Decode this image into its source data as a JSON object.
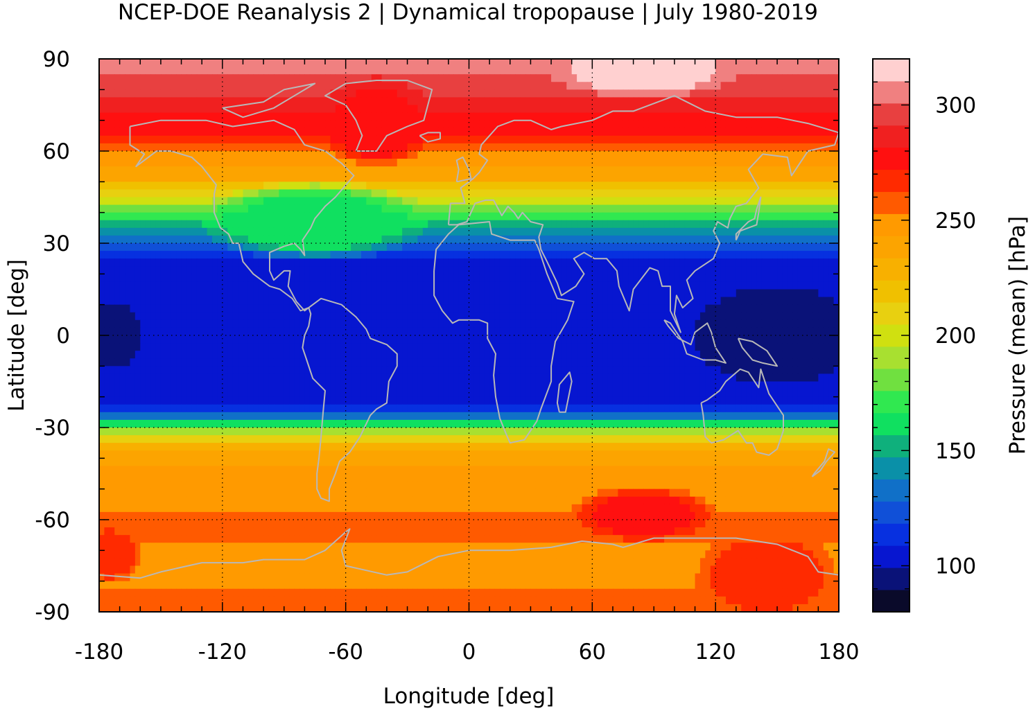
{
  "chart_data": {
    "type": "heatmap",
    "title": "NCEP-DOE Reanalysis 2 | Dynamical tropopause | July 1980-2019",
    "xlabel": "Longitude [deg]",
    "ylabel": "Latitude [deg]",
    "colorbar_label": "Pressure (mean) [hPa]",
    "xlim": [
      -180,
      180
    ],
    "ylim": [
      -90,
      90
    ],
    "x_ticks": [
      -180,
      -120,
      -60,
      0,
      60,
      120,
      180
    ],
    "y_ticks": [
      90,
      60,
      30,
      0,
      -30,
      -60,
      -90
    ],
    "x_tick_labels": [
      "-180",
      "-120",
      "-60",
      "0",
      "60",
      "120",
      "180"
    ],
    "y_tick_labels": [
      "90",
      "60",
      "30",
      "0",
      "-30",
      "-60",
      "-90"
    ],
    "grid": true,
    "colorbar": {
      "min": 80,
      "max": 320,
      "ticks": [
        100,
        150,
        200,
        250,
        300
      ],
      "tick_labels": [
        "100",
        "150",
        "200",
        "250",
        "300"
      ],
      "colors": [
        "#0a0a2a",
        "#0a1278",
        "#0716d0",
        "#0730e0",
        "#1050d8",
        "#1070c8",
        "#0a90a8",
        "#0fb07c",
        "#10e060",
        "#30e850",
        "#70e040",
        "#a8e030",
        "#d0e010",
        "#e8d010",
        "#f0c000",
        "#f8b000",
        "#fca400",
        "#ff9a00",
        "#ff5a00",
        "#ff2a00",
        "#ff1010",
        "#f02020",
        "#e84040",
        "#f08080",
        "#ffd0d0"
      ]
    },
    "zonal_mean_profile": {
      "lat": [
        90,
        85,
        80,
        75,
        70,
        65,
        60,
        55,
        50,
        45,
        40,
        35,
        30,
        25,
        20,
        15,
        10,
        5,
        0,
        -5,
        -10,
        -15,
        -20,
        -25,
        -30,
        -35,
        -40,
        -45,
        -50,
        -55,
        -60,
        -65,
        -70,
        -75,
        -80,
        -85,
        -90
      ],
      "pressure": [
        305,
        300,
        295,
        285,
        280,
        275,
        255,
        245,
        230,
        205,
        175,
        150,
        130,
        110,
        105,
        100,
        100,
        100,
        100,
        100,
        100,
        100,
        105,
        115,
        180,
        225,
        240,
        245,
        250,
        250,
        255,
        255,
        250,
        245,
        250,
        255,
        260
      ]
    },
    "regional_features": [
      {
        "name": "north pole maximum",
        "lon": [
          50,
          120
        ],
        "lat": [
          82,
          90
        ],
        "pressure": 315
      },
      {
        "name": "western pacific minimum",
        "lon": [
          120,
          180
        ],
        "lat": [
          -10,
          10
        ],
        "pressure": 90
      },
      {
        "name": "eastern pacific minimum",
        "lon": [
          -180,
          -170
        ],
        "lat": [
          -5,
          5
        ],
        "pressure": 95
      },
      {
        "name": "southern ocean maximum",
        "lon": [
          60,
          110
        ],
        "lat": [
          -62,
          -55
        ],
        "pressure": 275
      },
      {
        "name": "antarctic coast maximum",
        "lon": [
          120,
          170
        ],
        "lat": [
          -85,
          -70
        ],
        "pressure": 270
      },
      {
        "name": "antarctic coast maximum",
        "lon": [
          -180,
          -170
        ],
        "lat": [
          -75,
          -68
        ],
        "pressure": 270
      },
      {
        "name": "greenland maximum",
        "lon": [
          -60,
          -30
        ],
        "lat": [
          60,
          80
        ],
        "pressure": 280
      },
      {
        "name": "north atlantic trough",
        "lon": [
          -120,
          -30
        ],
        "lat": [
          30,
          45
        ],
        "pressure": 165
      }
    ]
  }
}
